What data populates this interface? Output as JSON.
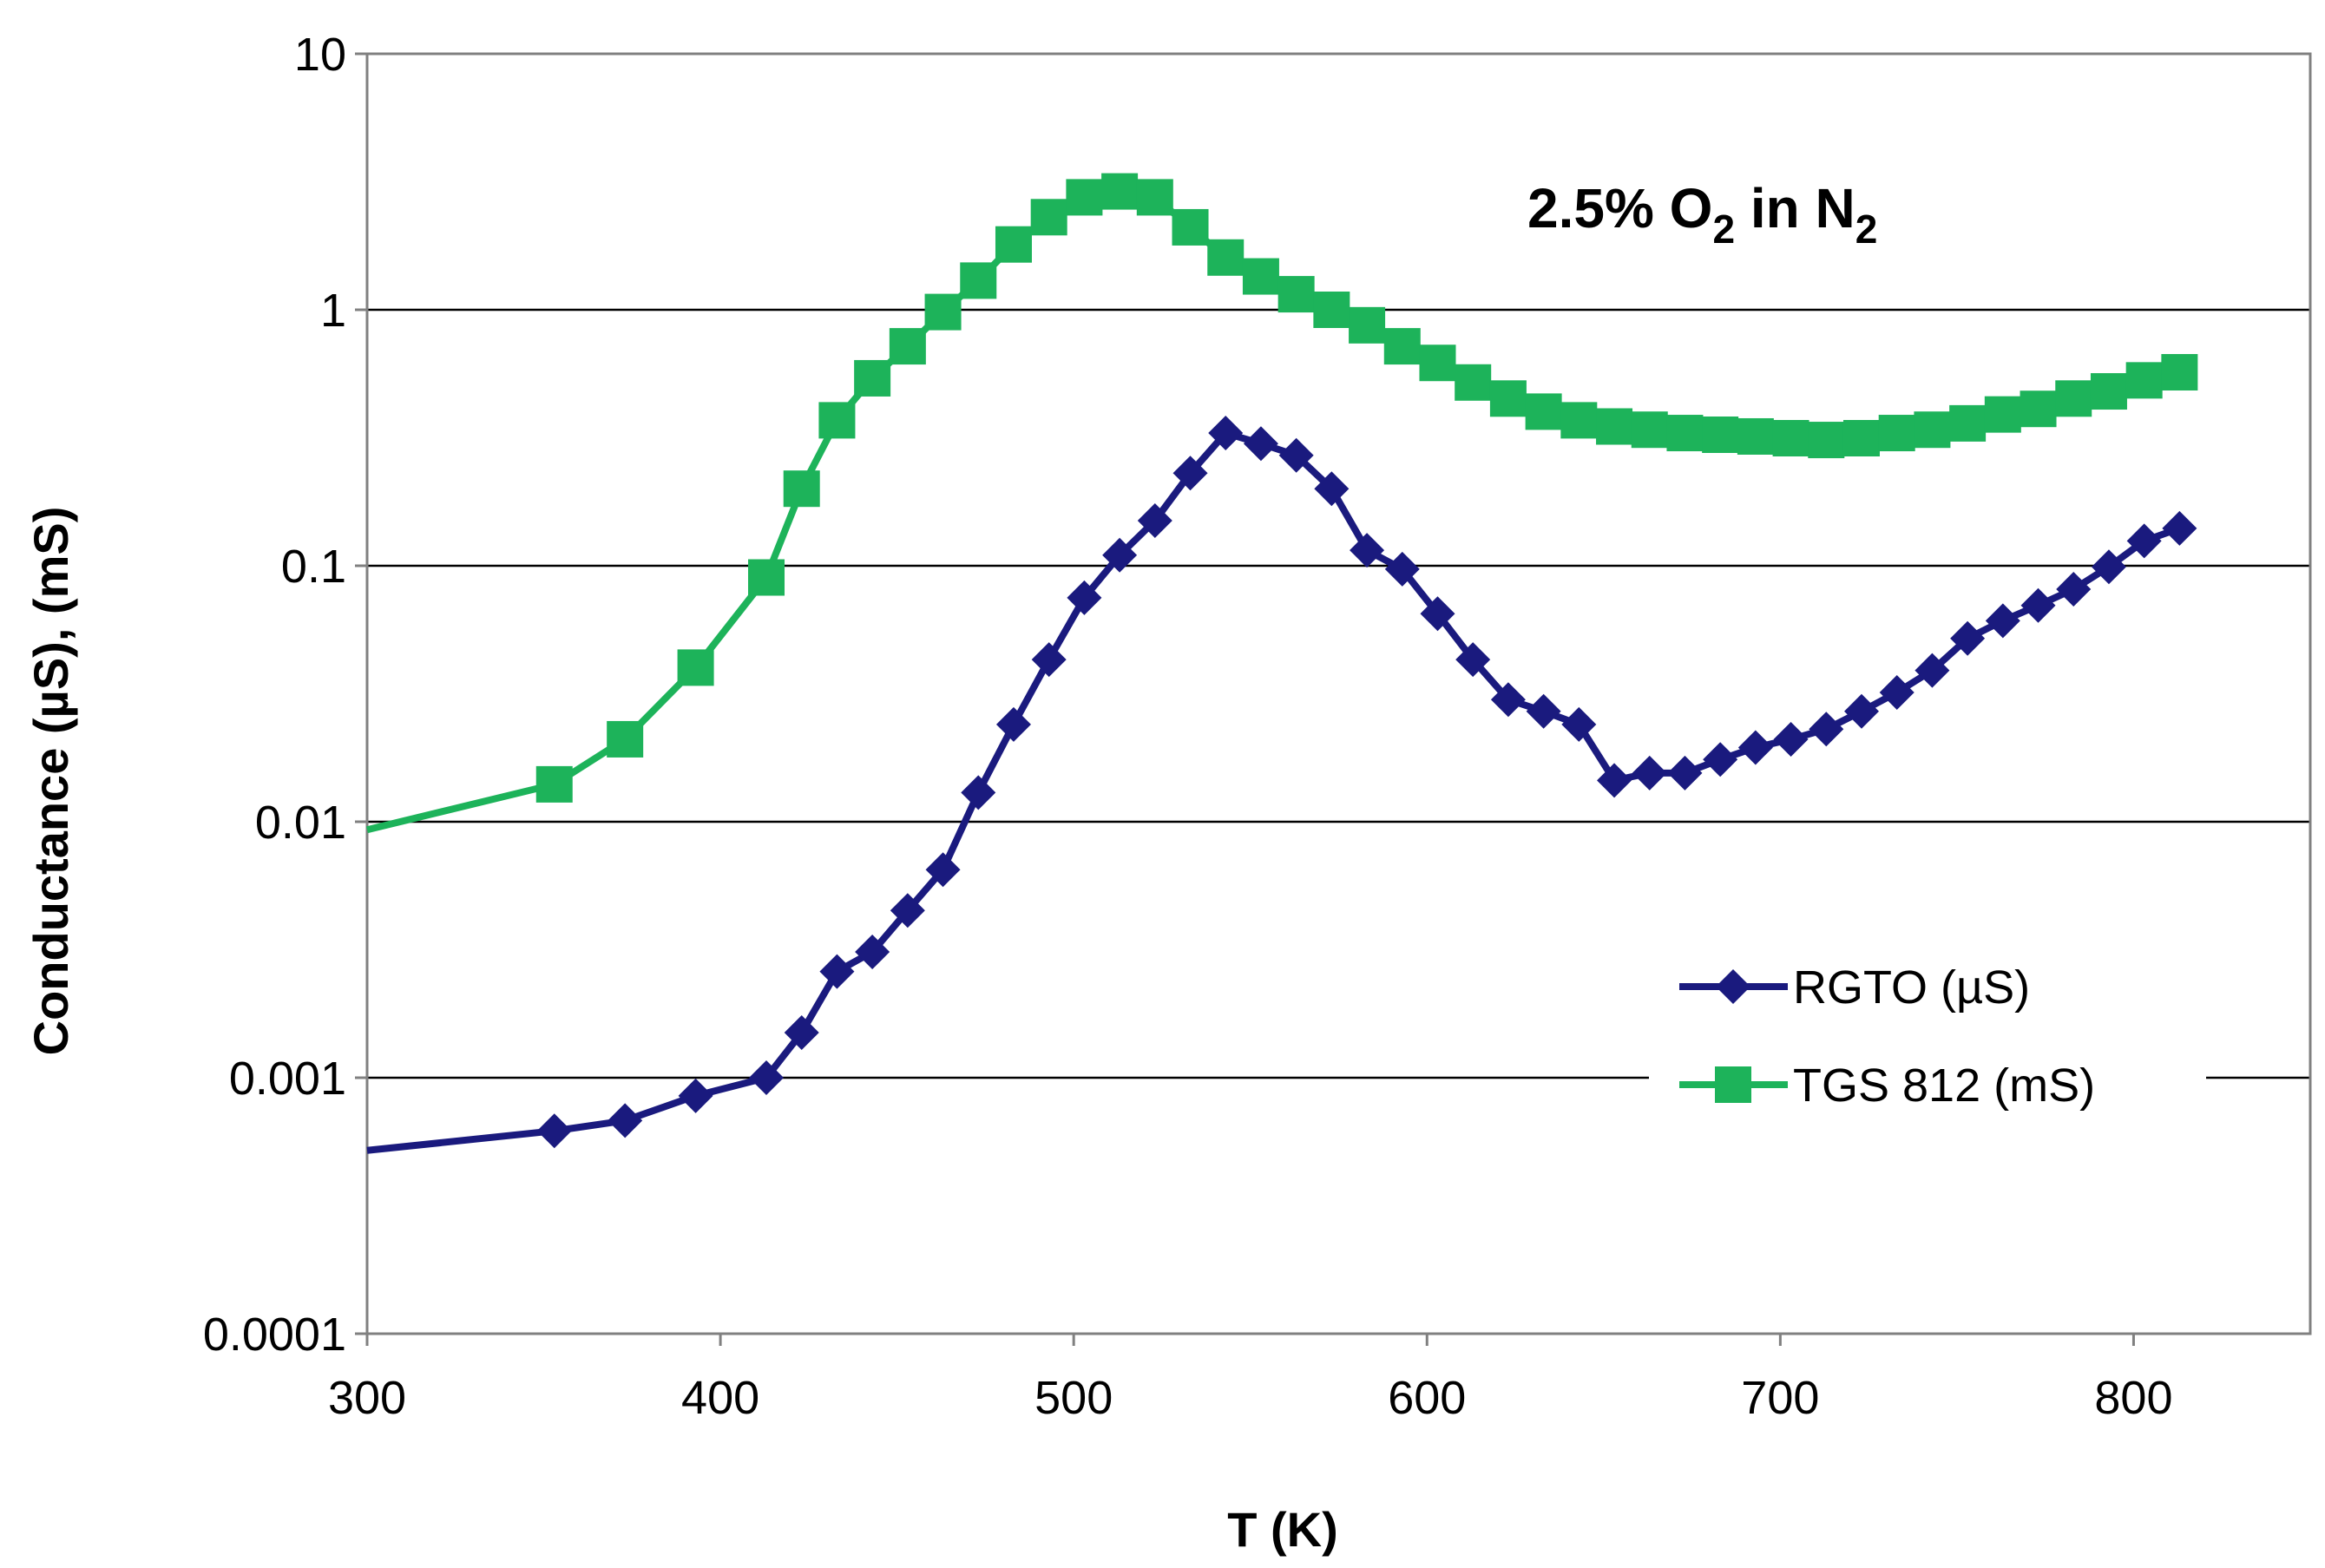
{
  "chart_data": {
    "type": "line",
    "title": "",
    "xlabel": "T (K)",
    "ylabel": "Conductance (µS), (mS)",
    "xlim": [
      300,
      850
    ],
    "ylim": [
      0.0001,
      10
    ],
    "yscale": "log",
    "grid": "horizontal",
    "legend_position": "right",
    "annotation": {
      "prefix": "2.5% O",
      "sub1": "2",
      "middle": " in N",
      "sub2": "2"
    },
    "x_ticks": [
      "300",
      "400",
      "500",
      "600",
      "700",
      "800"
    ],
    "y_ticks": [
      "0.0001",
      "0.001",
      "0.01",
      "0.1",
      "1",
      "10"
    ],
    "series": [
      {
        "name": "RGTO (µS)",
        "color": "#1a1a7e",
        "marker": "diamond",
        "x": [
          300,
          353,
          373,
          393,
          413,
          423,
          433,
          443,
          453,
          463,
          473,
          483,
          493,
          503,
          513,
          523,
          533,
          543,
          553,
          563,
          573,
          583,
          593,
          603,
          613,
          623,
          633,
          643,
          653,
          663,
          673,
          683,
          693,
          703,
          713,
          723,
          733,
          743,
          753,
          763,
          773,
          783,
          793,
          803,
          813
        ],
        "values": [
          0.00052,
          0.00062,
          0.00068,
          0.00085,
          0.001,
          0.0015,
          0.0026,
          0.0031,
          0.0045,
          0.0065,
          0.013,
          0.024,
          0.043,
          0.075,
          0.11,
          0.15,
          0.23,
          0.33,
          0.3,
          0.27,
          0.2,
          0.115,
          0.097,
          0.065,
          0.043,
          0.03,
          0.027,
          0.024,
          0.0145,
          0.0155,
          0.0155,
          0.0175,
          0.0195,
          0.021,
          0.023,
          0.027,
          0.032,
          0.039,
          0.052,
          0.061,
          0.07,
          0.081,
          0.099,
          0.125,
          0.14
        ]
      },
      {
        "name": "TGS 812 (mS)",
        "color": "#1db35a",
        "marker": "square",
        "x": [
          300,
          353,
          373,
          393,
          413,
          423,
          433,
          443,
          453,
          463,
          473,
          483,
          493,
          503,
          513,
          523,
          533,
          543,
          553,
          563,
          573,
          583,
          593,
          603,
          613,
          623,
          633,
          643,
          653,
          663,
          673,
          683,
          693,
          703,
          713,
          723,
          733,
          743,
          753,
          763,
          773,
          783,
          793,
          803,
          813
        ],
        "values": [
          0.0093,
          0.014,
          0.021,
          0.04,
          0.09,
          0.2,
          0.37,
          0.54,
          0.72,
          0.98,
          1.3,
          1.8,
          2.3,
          2.75,
          2.9,
          2.75,
          2.1,
          1.6,
          1.35,
          1.15,
          1.0,
          0.87,
          0.72,
          0.62,
          0.52,
          0.45,
          0.4,
          0.37,
          0.35,
          0.34,
          0.33,
          0.325,
          0.32,
          0.315,
          0.31,
          0.315,
          0.33,
          0.34,
          0.36,
          0.39,
          0.41,
          0.45,
          0.48,
          0.53,
          0.57
        ]
      }
    ]
  }
}
